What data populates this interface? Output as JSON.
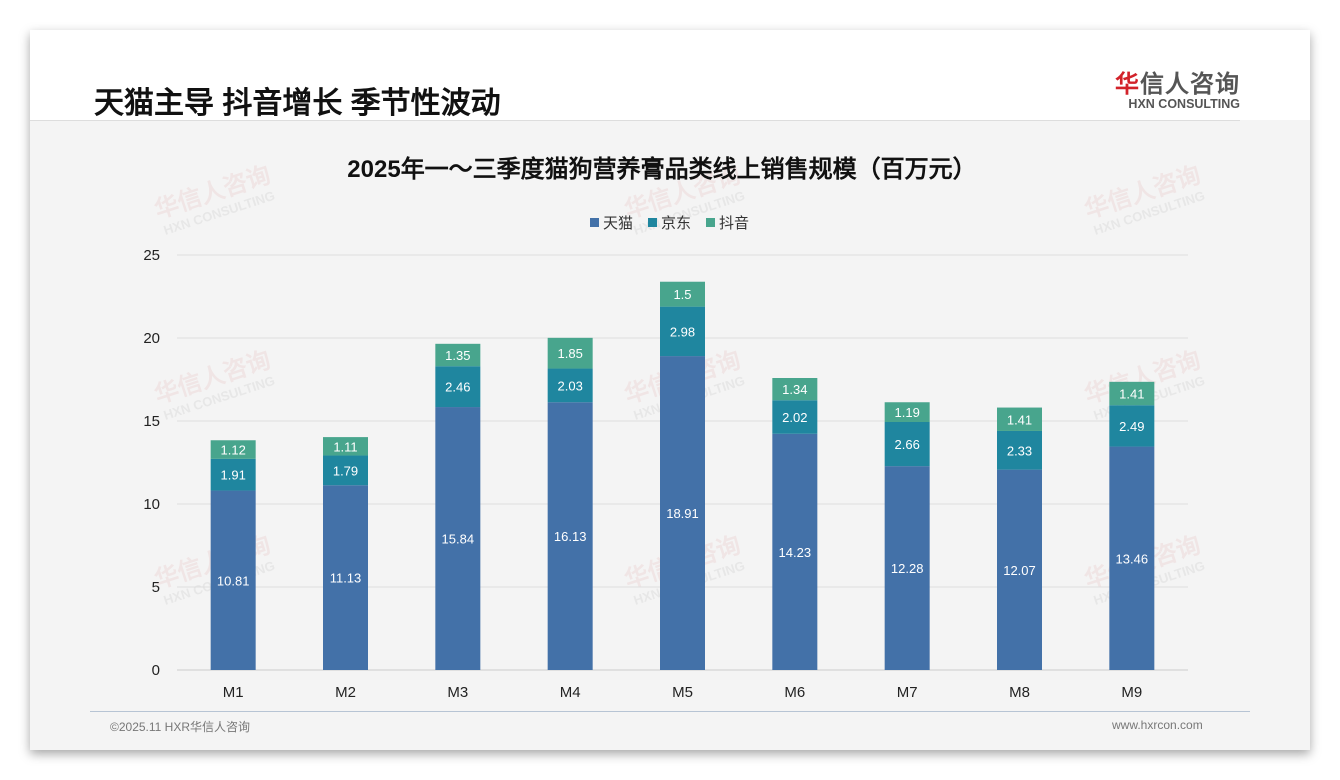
{
  "header": {
    "title": "天猫主导 抖音增长 季节性波动",
    "logo_cn_red": "华",
    "logo_cn": "信人咨询",
    "logo_en": "HXN CONSULTING"
  },
  "watermark": {
    "cn": "华信人咨询",
    "en": "HXN CONSULTING"
  },
  "footer": {
    "left": "©2025.11 HXR华信人咨询",
    "right": "www.hxrcon.com"
  },
  "chart_data": {
    "type": "bar",
    "stacked": true,
    "title": "2025年一～三季度猫狗营养膏品类线上销售规模（百万元）",
    "categories": [
      "M1",
      "M2",
      "M3",
      "M4",
      "M5",
      "M6",
      "M7",
      "M8",
      "M9"
    ],
    "series": [
      {
        "name": "天猫",
        "color": "#4371a8",
        "values": [
          10.81,
          11.13,
          15.84,
          16.13,
          18.91,
          14.23,
          12.28,
          12.07,
          13.46
        ]
      },
      {
        "name": "京东",
        "color": "#1f869f",
        "values": [
          1.91,
          1.79,
          2.46,
          2.03,
          2.98,
          2.02,
          2.66,
          2.33,
          2.49
        ]
      },
      {
        "name": "抖音",
        "color": "#48a58d",
        "values": [
          1.12,
          1.11,
          1.35,
          1.85,
          1.5,
          1.34,
          1.19,
          1.41,
          1.41
        ]
      }
    ],
    "ylim": [
      0,
      25
    ],
    "yticks": [
      "0",
      "5",
      "10",
      "15",
      "20",
      "25"
    ],
    "grid": true,
    "legend": "top-center",
    "xlabel": "",
    "ylabel": ""
  }
}
